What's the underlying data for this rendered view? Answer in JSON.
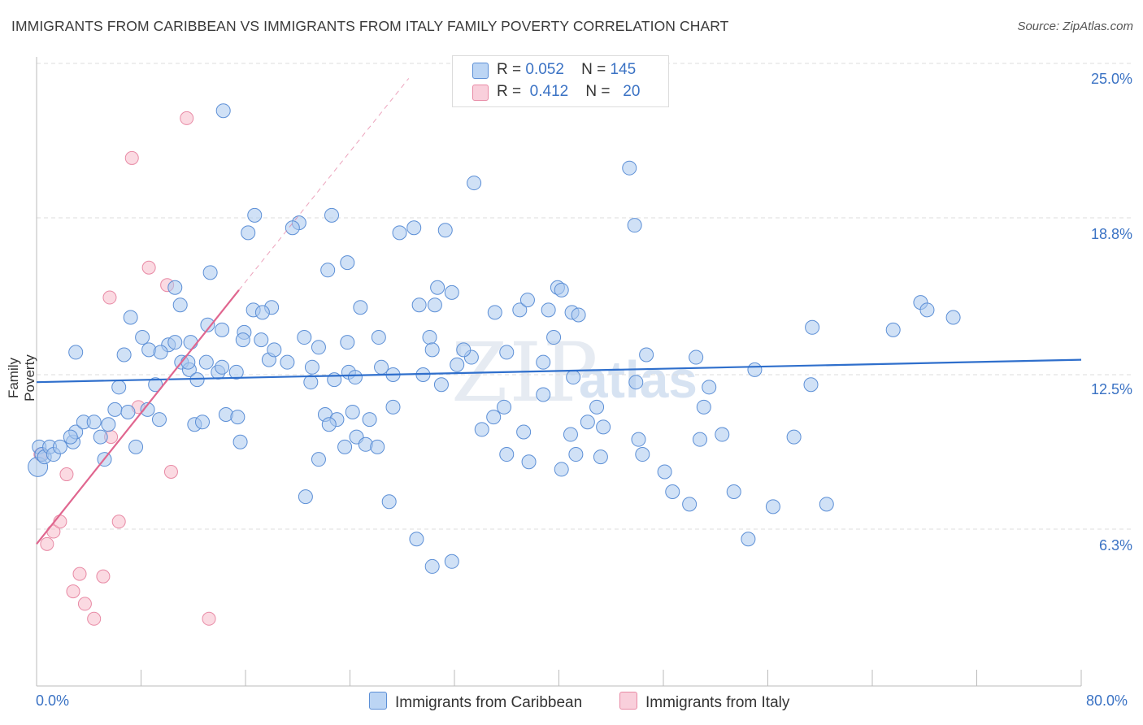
{
  "title": "IMMIGRANTS FROM CARIBBEAN VS IMMIGRANTS FROM ITALY FAMILY POVERTY CORRELATION CHART",
  "source": "Source: ZipAtlas.com",
  "watermark": "ZIP",
  "watermark2": "atlas",
  "colors": {
    "caribbean_fill": "#a9c8ef",
    "caribbean_stroke": "#5c8fd6",
    "caribbean_line": "#2f6fcc",
    "italy_fill": "#f7bccb",
    "italy_stroke": "#e88aa5",
    "italy_line": "#e0668f",
    "axis_label": "#3a72c4",
    "grid": "#dddddd"
  },
  "legend_top": {
    "rows": [
      {
        "r_label": "R =",
        "r_value": "0.052",
        "n_label": "N =",
        "n_value": "145"
      },
      {
        "r_label": "R =",
        "r_value": "0.412",
        "n_label": "N =",
        "n_value": "20"
      }
    ]
  },
  "legend_bottom": {
    "items": [
      "Immigrants from Caribbean",
      "Immigrants from Italy"
    ]
  },
  "chart_data": {
    "type": "scatter",
    "title": "IMMIGRANTS FROM CARIBBEAN VS IMMIGRANTS FROM ITALY FAMILY POVERTY CORRELATION CHART",
    "xlabel": "",
    "ylabel": "Family Poverty",
    "xlim": [
      0,
      80
    ],
    "ylim": [
      0,
      25.0
    ],
    "x_tick_labels": [
      "0.0%",
      "80.0%"
    ],
    "y_ticks": [
      6.3,
      12.5,
      18.8,
      25.0
    ],
    "y_tick_labels": [
      "6.3%",
      "12.5%",
      "18.8%",
      "25.0%"
    ],
    "grid": "horizontal dashed",
    "legend_placement": "top-center and bottom",
    "series": [
      {
        "name": "Immigrants from Caribbean",
        "R": 0.052,
        "N": 145,
        "trend": {
          "x": [
            0,
            80
          ],
          "y": [
            12.2,
            13.1
          ]
        },
        "points": [
          [
            0.1,
            8.8
          ],
          [
            0.2,
            9.6
          ],
          [
            0.4,
            9.3
          ],
          [
            0.6,
            9.2
          ],
          [
            1.0,
            9.6
          ],
          [
            1.3,
            9.3
          ],
          [
            1.8,
            9.6
          ],
          [
            2.8,
            9.8
          ],
          [
            3.0,
            10.2
          ],
          [
            3.6,
            10.6
          ],
          [
            4.4,
            10.6
          ],
          [
            4.9,
            10.0
          ],
          [
            2.6,
            10.0
          ],
          [
            5.2,
            9.1
          ],
          [
            5.5,
            10.5
          ],
          [
            6.0,
            11.1
          ],
          [
            6.3,
            12.0
          ],
          [
            7.0,
            11.0
          ],
          [
            7.6,
            9.6
          ],
          [
            8.5,
            11.1
          ],
          [
            9.1,
            12.1
          ],
          [
            9.4,
            10.7
          ],
          [
            8.6,
            13.5
          ],
          [
            8.1,
            14.0
          ],
          [
            6.7,
            13.3
          ],
          [
            7.2,
            14.8
          ],
          [
            3.0,
            13.4
          ],
          [
            11.1,
            13.0
          ],
          [
            10.1,
            13.7
          ],
          [
            10.6,
            13.8
          ],
          [
            11.7,
            12.7
          ],
          [
            13.0,
            13.0
          ],
          [
            12.3,
            12.3
          ],
          [
            13.9,
            12.6
          ],
          [
            14.2,
            12.8
          ],
          [
            15.3,
            12.6
          ],
          [
            12.1,
            10.5
          ],
          [
            12.7,
            10.6
          ],
          [
            15.9,
            14.2
          ],
          [
            16.6,
            15.1
          ],
          [
            15.8,
            13.9
          ],
          [
            14.2,
            14.3
          ],
          [
            14.5,
            10.9
          ],
          [
            15.4,
            10.8
          ],
          [
            15.6,
            9.8
          ],
          [
            17.2,
            13.9
          ],
          [
            17.8,
            13.1
          ],
          [
            18.2,
            13.5
          ],
          [
            18.0,
            15.2
          ],
          [
            17.3,
            15.0
          ],
          [
            19.2,
            13.0
          ],
          [
            20.5,
            14.0
          ],
          [
            21.1,
            12.8
          ],
          [
            21.0,
            12.2
          ],
          [
            21.6,
            13.6
          ],
          [
            20.1,
            18.6
          ],
          [
            19.6,
            18.4
          ],
          [
            16.7,
            18.9
          ],
          [
            16.2,
            18.2
          ],
          [
            13.1,
            14.5
          ],
          [
            11.8,
            13.8
          ],
          [
            11.6,
            13.0
          ],
          [
            11.0,
            15.3
          ],
          [
            9.5,
            13.4
          ],
          [
            13.3,
            16.6
          ],
          [
            10.6,
            16.0
          ],
          [
            14.3,
            23.1
          ],
          [
            22.1,
            10.9
          ],
          [
            23.0,
            10.7
          ],
          [
            22.4,
            10.5
          ],
          [
            22.8,
            12.3
          ],
          [
            23.8,
            13.8
          ],
          [
            23.9,
            12.6
          ],
          [
            24.4,
            12.4
          ],
          [
            24.8,
            15.2
          ],
          [
            23.8,
            17.0
          ],
          [
            22.3,
            16.7
          ],
          [
            22.6,
            18.9
          ],
          [
            20.6,
            7.6
          ],
          [
            21.6,
            9.1
          ],
          [
            23.6,
            9.6
          ],
          [
            24.5,
            10.0
          ],
          [
            24.2,
            11.0
          ],
          [
            25.2,
            9.7
          ],
          [
            26.1,
            9.6
          ],
          [
            25.5,
            10.7
          ],
          [
            26.4,
            12.8
          ],
          [
            27.3,
            11.2
          ],
          [
            27.3,
            12.5
          ],
          [
            26.2,
            14.0
          ],
          [
            27.8,
            18.2
          ],
          [
            28.9,
            18.4
          ],
          [
            29.3,
            15.3
          ],
          [
            30.1,
            14.0
          ],
          [
            30.3,
            13.5
          ],
          [
            30.5,
            15.3
          ],
          [
            30.7,
            16.0
          ],
          [
            29.6,
            12.5
          ],
          [
            31.0,
            12.1
          ],
          [
            32.2,
            12.9
          ],
          [
            33.3,
            13.2
          ],
          [
            33.5,
            20.2
          ],
          [
            31.3,
            18.3
          ],
          [
            31.8,
            15.8
          ],
          [
            32.7,
            13.5
          ],
          [
            35.1,
            15.0
          ],
          [
            35.0,
            10.8
          ],
          [
            34.1,
            10.3
          ],
          [
            35.8,
            11.2
          ],
          [
            36.0,
            13.4
          ],
          [
            37.0,
            15.1
          ],
          [
            37.6,
            15.5
          ],
          [
            37.3,
            10.2
          ],
          [
            36.0,
            9.3
          ],
          [
            37.7,
            9.0
          ],
          [
            38.8,
            13.0
          ],
          [
            39.2,
            15.1
          ],
          [
            39.6,
            14.0
          ],
          [
            38.8,
            11.7
          ],
          [
            39.9,
            16.0
          ],
          [
            40.2,
            15.9
          ],
          [
            41.0,
            15.0
          ],
          [
            41.5,
            14.9
          ],
          [
            40.2,
            8.7
          ],
          [
            40.9,
            10.1
          ],
          [
            41.3,
            9.3
          ],
          [
            42.2,
            10.6
          ],
          [
            42.9,
            11.2
          ],
          [
            43.4,
            10.4
          ],
          [
            43.2,
            9.2
          ],
          [
            45.9,
            12.2
          ],
          [
            46.7,
            13.3
          ],
          [
            45.4,
            20.8
          ],
          [
            45.8,
            18.5
          ],
          [
            46.4,
            9.3
          ],
          [
            48.1,
            8.6
          ],
          [
            48.7,
            7.8
          ],
          [
            50.0,
            7.3
          ],
          [
            50.5,
            13.2
          ],
          [
            46.1,
            9.9
          ],
          [
            41.1,
            12.4
          ],
          [
            51.1,
            11.2
          ],
          [
            50.8,
            9.9
          ],
          [
            51.5,
            12.0
          ],
          [
            55.0,
            12.7
          ],
          [
            52.5,
            10.1
          ],
          [
            54.5,
            5.9
          ],
          [
            53.4,
            7.8
          ],
          [
            56.4,
            7.2
          ],
          [
            60.5,
            7.3
          ],
          [
            58.0,
            10.0
          ],
          [
            59.3,
            12.1
          ],
          [
            59.4,
            14.4
          ],
          [
            65.6,
            14.3
          ],
          [
            67.7,
            15.4
          ],
          [
            68.2,
            15.1
          ],
          [
            70.2,
            14.8
          ],
          [
            29.1,
            5.9
          ],
          [
            27.0,
            7.4
          ],
          [
            30.3,
            4.8
          ],
          [
            31.8,
            5.0
          ]
        ]
      },
      {
        "name": "Immigrants from Italy",
        "R": 0.412,
        "N": 20,
        "trend": {
          "x": [
            0.0,
            15.5
          ],
          "y": [
            5.7,
            15.9
          ],
          "dashed_to": {
            "x": 28.5,
            "y": 24.4
          }
        },
        "points": [
          [
            0.3,
            9.3
          ],
          [
            0.8,
            5.7
          ],
          [
            1.3,
            6.2
          ],
          [
            1.8,
            6.6
          ],
          [
            2.3,
            8.5
          ],
          [
            2.8,
            3.8
          ],
          [
            3.3,
            4.5
          ],
          [
            3.7,
            3.3
          ],
          [
            4.4,
            2.7
          ],
          [
            5.1,
            4.4
          ],
          [
            5.7,
            10.0
          ],
          [
            5.6,
            15.6
          ],
          [
            6.3,
            6.6
          ],
          [
            7.3,
            21.2
          ],
          [
            7.8,
            11.2
          ],
          [
            8.6,
            16.8
          ],
          [
            10.0,
            16.1
          ],
          [
            10.3,
            8.6
          ],
          [
            11.5,
            22.8
          ],
          [
            13.2,
            2.7
          ]
        ]
      }
    ]
  }
}
